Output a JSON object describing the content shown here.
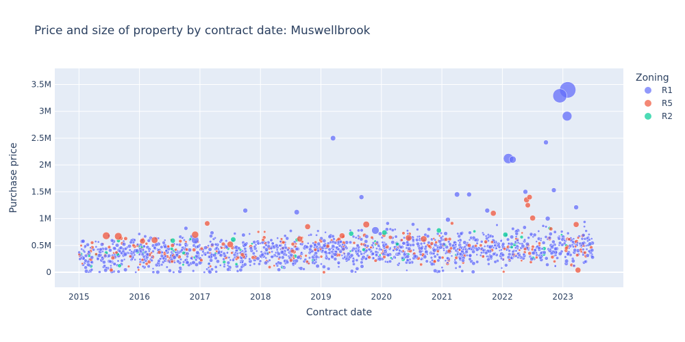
{
  "chart_data": {
    "type": "scatter",
    "title": "Price and size of property by contract date: Muswellbrook",
    "xlabel": "Contract date",
    "ylabel": "Purchase price",
    "xlim": [
      2014.6,
      2024.0
    ],
    "ylim": [
      -280000,
      3800000
    ],
    "x_ticks": [
      2015,
      2016,
      2017,
      2018,
      2019,
      2020,
      2021,
      2022,
      2023
    ],
    "x_tick_labels": [
      "2015",
      "2016",
      "2017",
      "2018",
      "2019",
      "2020",
      "2021",
      "2022",
      "2023"
    ],
    "y_ticks": [
      0,
      500000,
      1000000,
      1500000,
      2000000,
      2500000,
      3000000,
      3500000
    ],
    "y_tick_labels": [
      "0",
      "0.5M",
      "1M",
      "1.5M",
      "2M",
      "2.5M",
      "3M",
      "3.5M"
    ],
    "grid": true,
    "legend": {
      "title": "Zoning",
      "position": "right",
      "entries": [
        {
          "name": "R1",
          "color": "#636efa"
        },
        {
          "name": "R5",
          "color": "#EF553B"
        },
        {
          "name": "R2",
          "color": "#00cc96"
        }
      ]
    },
    "plot_background": "#E5ECF6",
    "background_cloud": {
      "count": 1700,
      "x_range": [
        2015.0,
        2023.5
      ],
      "median_start": 300000,
      "median_end": 480000,
      "spread": 300000,
      "note": "Dense cloud of small-size transactions, mostly R1 with some R5 and R2"
    },
    "series": [
      {
        "name": "R1",
        "color": "#636efa",
        "points": [
          {
            "x": 2023.08,
            "y": 3400000,
            "size": 6.0
          },
          {
            "x": 2022.95,
            "y": 3290000,
            "size": 5.0
          },
          {
            "x": 2023.07,
            "y": 2910000,
            "size": 3.0
          },
          {
            "x": 2022.1,
            "y": 2120000,
            "size": 3.2
          },
          {
            "x": 2022.17,
            "y": 2100000,
            "size": 1.8
          },
          {
            "x": 2019.2,
            "y": 2500000,
            "size": 1.0
          },
          {
            "x": 2022.72,
            "y": 2420000,
            "size": 0.8
          },
          {
            "x": 2022.85,
            "y": 1530000,
            "size": 0.8
          },
          {
            "x": 2021.25,
            "y": 1450000,
            "size": 1.0
          },
          {
            "x": 2021.45,
            "y": 1450000,
            "size": 0.8
          },
          {
            "x": 2019.67,
            "y": 1400000,
            "size": 0.8
          },
          {
            "x": 2022.38,
            "y": 1500000,
            "size": 0.8
          },
          {
            "x": 2023.22,
            "y": 1210000,
            "size": 0.8
          },
          {
            "x": 2021.75,
            "y": 1150000,
            "size": 0.8
          },
          {
            "x": 2017.75,
            "y": 1150000,
            "size": 0.8
          },
          {
            "x": 2018.6,
            "y": 1120000,
            "size": 1.0
          },
          {
            "x": 2019.9,
            "y": 780000,
            "size": 2.0
          },
          {
            "x": 2016.92,
            "y": 600000,
            "size": 2.0
          },
          {
            "x": 2022.75,
            "y": 1000000,
            "size": 0.8
          },
          {
            "x": 2021.1,
            "y": 980000,
            "size": 0.8
          }
        ]
      },
      {
        "name": "R5",
        "color": "#EF553B",
        "points": [
          {
            "x": 2015.45,
            "y": 680000,
            "size": 2.0
          },
          {
            "x": 2015.65,
            "y": 670000,
            "size": 2.0
          },
          {
            "x": 2016.25,
            "y": 600000,
            "size": 1.6
          },
          {
            "x": 2016.92,
            "y": 700000,
            "size": 1.8
          },
          {
            "x": 2017.12,
            "y": 910000,
            "size": 1.0
          },
          {
            "x": 2017.5,
            "y": 520000,
            "size": 1.5
          },
          {
            "x": 2018.78,
            "y": 850000,
            "size": 1.2
          },
          {
            "x": 2019.75,
            "y": 890000,
            "size": 1.6
          },
          {
            "x": 2020.45,
            "y": 640000,
            "size": 1.5
          },
          {
            "x": 2020.7,
            "y": 620000,
            "size": 1.5
          },
          {
            "x": 2021.85,
            "y": 1100000,
            "size": 1.2
          },
          {
            "x": 2022.4,
            "y": 1350000,
            "size": 1.2
          },
          {
            "x": 2022.42,
            "y": 1250000,
            "size": 1.0
          },
          {
            "x": 2022.45,
            "y": 1400000,
            "size": 1.0
          },
          {
            "x": 2022.5,
            "y": 1010000,
            "size": 1.2
          },
          {
            "x": 2023.22,
            "y": 890000,
            "size": 1.2
          },
          {
            "x": 2023.25,
            "y": 40000,
            "size": 1.2
          },
          {
            "x": 2016.05,
            "y": 580000,
            "size": 1.2
          },
          {
            "x": 2018.65,
            "y": 620000,
            "size": 1.3
          },
          {
            "x": 2019.35,
            "y": 680000,
            "size": 1.2
          }
        ]
      },
      {
        "name": "R2",
        "color": "#00cc96",
        "points": [
          {
            "x": 2017.55,
            "y": 610000,
            "size": 1.0
          },
          {
            "x": 2019.5,
            "y": 720000,
            "size": 0.9
          },
          {
            "x": 2020.05,
            "y": 740000,
            "size": 1.0
          },
          {
            "x": 2020.95,
            "y": 780000,
            "size": 0.9
          },
          {
            "x": 2022.05,
            "y": 700000,
            "size": 0.9
          },
          {
            "x": 2016.55,
            "y": 590000,
            "size": 0.9
          }
        ]
      }
    ]
  }
}
